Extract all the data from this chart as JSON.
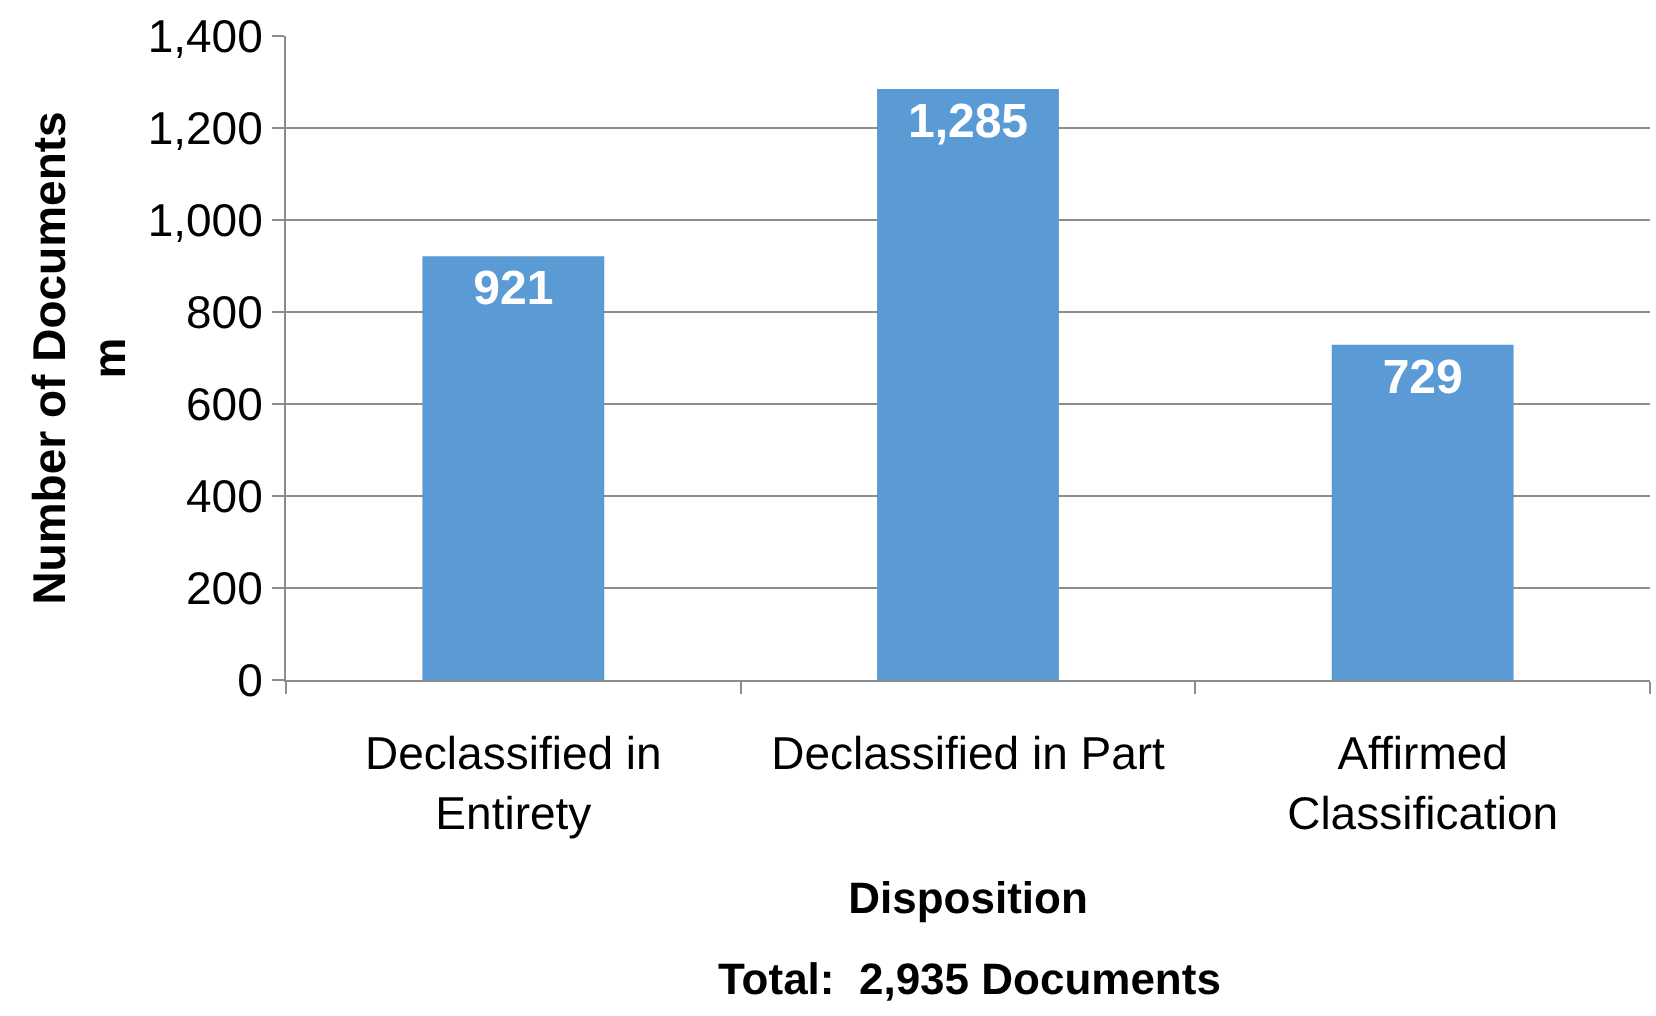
{
  "chart_data": {
    "type": "bar",
    "xlabel": "Disposition",
    "ylabel": "Number of Documents\nm",
    "annotations": [
      "Total:  2,935 Documents"
    ],
    "categories": [
      "Declassified in Entirety",
      "Declassified in Part",
      "Affirmed Classification"
    ],
    "values": [
      921,
      1285,
      729
    ],
    "value_labels": [
      "921",
      "1,285",
      "729"
    ],
    "color": "#5b9bd5",
    "ylim": [
      0,
      1400
    ],
    "yticks": [
      0,
      200,
      400,
      600,
      800,
      {
        "value": 1000,
        "label": "1,000"
      },
      {
        "value": 1200,
        "label": "1,200"
      },
      {
        "value": 1400,
        "label": "1,400"
      }
    ],
    "grid": "y"
  }
}
